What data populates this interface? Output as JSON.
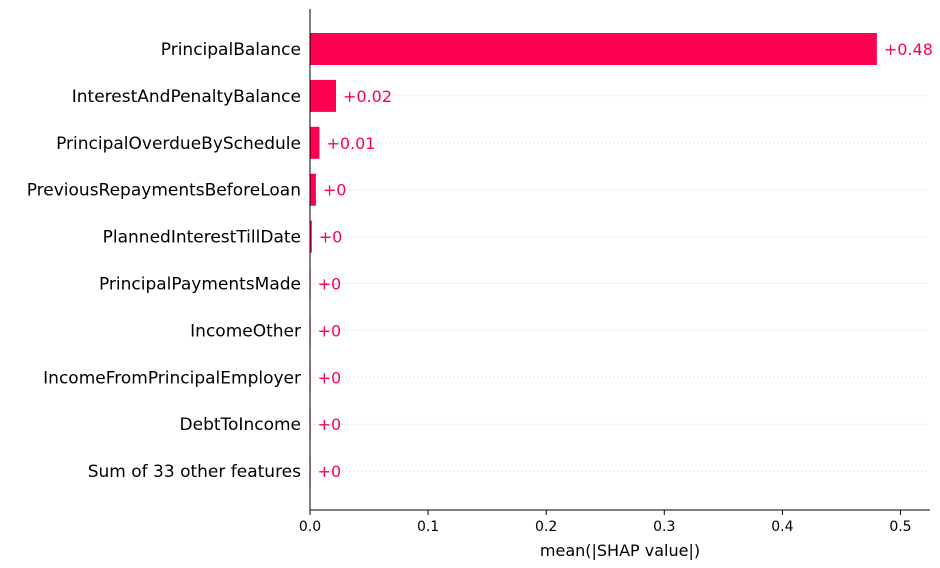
{
  "chart_data": {
    "type": "bar",
    "orientation": "horizontal",
    "title": "",
    "xlabel": "mean(|SHAP value|)",
    "ylabel": "",
    "xlim": [
      0,
      0.525
    ],
    "xticks": [
      0.0,
      0.1,
      0.2,
      0.3,
      0.4,
      0.5
    ],
    "xtick_labels": [
      "0.0",
      "0.1",
      "0.2",
      "0.3",
      "0.4",
      "0.5"
    ],
    "bar_color": "#ff0051",
    "gridlines": "dotted horizontal per row",
    "categories": [
      "PrincipalBalance",
      "InterestAndPenaltyBalance",
      "PrincipalOverdueBySchedule",
      "PreviousRepaymentsBeforeLoan",
      "PlannedInterestTillDate",
      "PrincipalPaymentsMade",
      "IncomeOther",
      "IncomeFromPrincipalEmployer",
      "DebtToIncome",
      "Sum of 33 other features"
    ],
    "values": [
      0.48,
      0.022,
      0.008,
      0.005,
      0.0015,
      0.0005,
      0.0004,
      0.0004,
      0.0003,
      0.0003
    ],
    "value_labels": [
      "+0.48",
      "+0.02",
      "+0.01",
      "+0",
      "+0",
      "+0",
      "+0",
      "+0",
      "+0",
      "+0"
    ]
  }
}
